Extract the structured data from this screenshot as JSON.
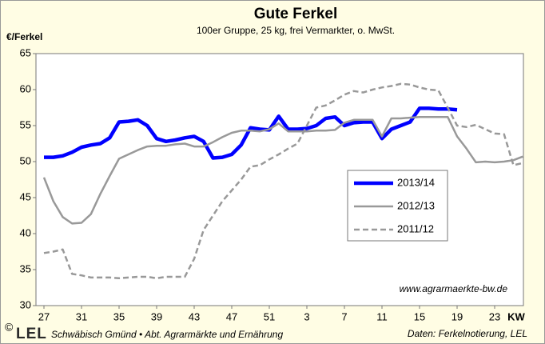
{
  "chart_data": {
    "type": "line",
    "title": "Gute Ferkel",
    "subtitle": "100er Gruppe, 25 kg, frei Vermarkter, o. MwSt.",
    "y_label": "€/Ferkel",
    "x_label": "KW",
    "annotations": [
      "www.agrarmaerkte-bw.de",
      "Daten: Ferkelnotierung, LEL"
    ],
    "footer": {
      "copyright": "©",
      "logo": "LEL",
      "text": "Schwäbisch Gmünd • Abt. Agrarmärkte und Ernährung"
    },
    "categories": [
      27,
      null,
      null,
      null,
      31,
      null,
      null,
      null,
      35,
      null,
      null,
      null,
      39,
      null,
      null,
      null,
      43,
      null,
      null,
      null,
      47,
      null,
      null,
      null,
      51,
      null,
      null,
      null,
      3,
      null,
      null,
      null,
      7,
      null,
      null,
      null,
      11,
      null,
      null,
      null,
      15,
      null,
      null,
      null,
      19,
      null,
      null,
      null,
      23,
      null,
      null,
      null
    ],
    "ylim": [
      30,
      65
    ],
    "yticks": [
      30,
      35,
      40,
      45,
      50,
      55,
      60,
      65
    ],
    "legend": "center-right",
    "series": [
      {
        "name": "2013/14",
        "color": "#0000ff",
        "style": "solid",
        "values": [
          50.6,
          50.6,
          50.8,
          51.3,
          52.0,
          52.3,
          52.5,
          53.3,
          55.5,
          55.6,
          55.8,
          55.0,
          53.2,
          52.8,
          53.0,
          53.3,
          53.5,
          52.8,
          50.5,
          50.6,
          51.0,
          52.3,
          54.7,
          54.5,
          54.4,
          56.3,
          54.5,
          54.5,
          54.6,
          55.0,
          56.0,
          56.2,
          55.0,
          55.4,
          55.5,
          55.5,
          53.2,
          54.5,
          55.0,
          55.5,
          57.4,
          57.4,
          57.3,
          57.3,
          57.2,
          null,
          null,
          null,
          null,
          null,
          null,
          null
        ]
      },
      {
        "name": "2012/13",
        "color": "#999999",
        "style": "solid",
        "values": [
          47.8,
          44.5,
          42.3,
          41.4,
          41.5,
          42.7,
          45.5,
          48.0,
          50.4,
          51.0,
          51.6,
          52.1,
          52.2,
          52.2,
          52.4,
          52.5,
          52.1,
          52.1,
          52.7,
          53.4,
          54.0,
          54.3,
          54.3,
          54.2,
          54.5,
          55.3,
          54.2,
          54.2,
          54.2,
          54.3,
          54.3,
          54.4,
          55.4,
          55.8,
          55.8,
          55.8,
          53.5,
          56.0,
          56.0,
          56.1,
          56.2,
          56.2,
          56.2,
          56.2,
          53.5,
          51.8,
          49.9,
          50.0,
          49.9,
          50.0,
          50.2,
          50.7
        ]
      },
      {
        "name": "2011/12",
        "color": "#999999",
        "style": "dashed",
        "values": [
          37.3,
          37.5,
          37.8,
          34.4,
          34.2,
          33.9,
          33.9,
          33.9,
          33.8,
          33.9,
          34.0,
          34.0,
          33.8,
          34.0,
          34.0,
          34.0,
          36.5,
          40.5,
          42.5,
          44.5,
          46.0,
          47.5,
          49.3,
          49.5,
          50.3,
          51.0,
          51.8,
          52.5,
          55.0,
          57.5,
          57.8,
          58.5,
          59.3,
          59.8,
          59.6,
          60.0,
          60.3,
          60.5,
          60.8,
          60.7,
          60.3,
          60.0,
          59.9,
          57.5,
          55.0,
          54.8,
          55.1,
          54.5,
          53.9,
          53.8,
          49.5,
          49.8
        ]
      }
    ]
  }
}
